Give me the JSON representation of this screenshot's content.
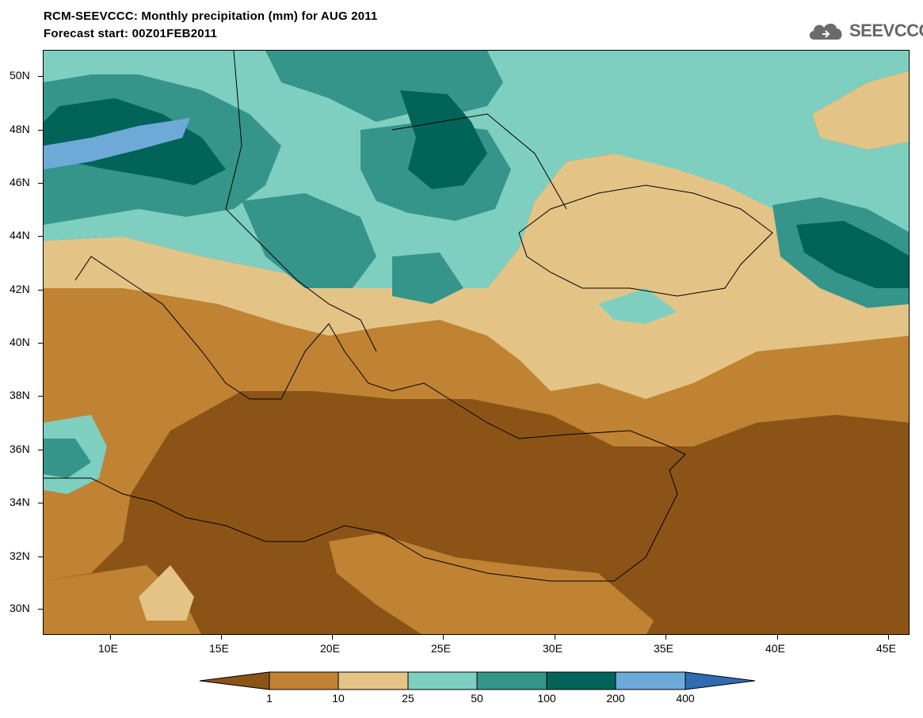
{
  "title": {
    "line1": "RCM-SEEVCCC: Monthly precipitation (mm) for AUG 2011",
    "line2": "Forecast start: 00Z01FEB2011"
  },
  "logo": {
    "text": "SEEVCCC",
    "icon": "cloud-icon"
  },
  "map": {
    "lon_range": [
      7,
      46
    ],
    "lat_range": [
      29,
      51
    ],
    "lat_ticks": [
      "50N",
      "48N",
      "46N",
      "44N",
      "42N",
      "40N",
      "38N",
      "36N",
      "34N",
      "32N",
      "30N"
    ],
    "lon_ticks": [
      "10E",
      "15E",
      "20E",
      "25E",
      "30E",
      "35E",
      "40E",
      "45E"
    ]
  },
  "colorbar": {
    "levels": [
      "1",
      "10",
      "25",
      "50",
      "100",
      "200",
      "400"
    ],
    "colors": [
      "#8b5416",
      "#bf8333",
      "#e3c486",
      "#7fcfc1",
      "#35958a",
      "#026359",
      "#6daad8",
      "#2f6db0"
    ]
  }
}
